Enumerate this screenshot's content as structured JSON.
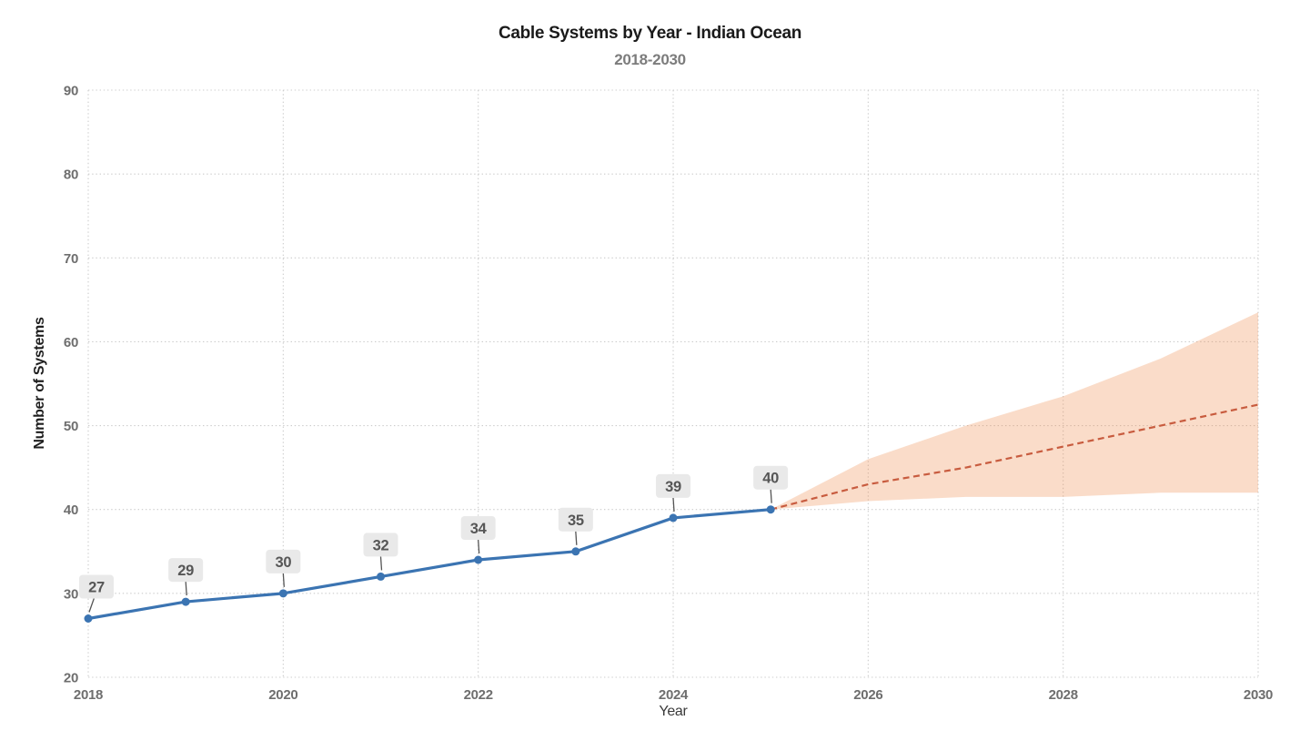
{
  "colors": {
    "historical_line": "#3b74b2",
    "marker": "#3b74b2",
    "forecast_line": "#c85c3f",
    "band_fill": "rgba(237,139,77,0.30)",
    "grid": "#cccccc",
    "tick_label": "#6e6e6e",
    "data_label_text": "#565656",
    "data_label_bg": "#e9e9e9",
    "leader_line": "#555555",
    "title": "#1a1a1a",
    "subtitle": "#7c7c7c",
    "axis_label": "#1f1f1f"
  },
  "chart_data": {
    "type": "line",
    "title": "Cable Systems by Year - Indian Ocean",
    "subtitle": "2018-2030",
    "xlabel": "Year",
    "ylabel": "Number of Systems",
    "xlim": [
      2018,
      2030
    ],
    "ylim": [
      20,
      90
    ],
    "x_ticks": [
      2018,
      2020,
      2022,
      2024,
      2026,
      2028,
      2030
    ],
    "y_ticks": [
      20,
      30,
      40,
      50,
      60,
      70,
      80,
      90
    ],
    "grid": true,
    "legend": false,
    "series": [
      {
        "name": "historical",
        "style": "solid-line-with-markers",
        "x": [
          2018,
          2019,
          2020,
          2021,
          2022,
          2023,
          2024,
          2025
        ],
        "y": [
          27,
          29,
          30,
          32,
          34,
          35,
          39,
          40
        ],
        "point_labels": [
          "27",
          "29",
          "30",
          "32",
          "34",
          "35",
          "39",
          "40"
        ]
      },
      {
        "name": "forecast",
        "style": "dashed-line",
        "x": [
          2025,
          2026,
          2027,
          2028,
          2029,
          2030
        ],
        "y": [
          40,
          43,
          45,
          47.5,
          50,
          52.5
        ]
      },
      {
        "name": "forecast-confidence-band",
        "style": "filled-band",
        "x": [
          2025,
          2026,
          2027,
          2028,
          2029,
          2030
        ],
        "upper": [
          40,
          46,
          50,
          53.5,
          58,
          63.5
        ],
        "lower": [
          40,
          41,
          41.5,
          41.5,
          42,
          42
        ]
      }
    ]
  }
}
